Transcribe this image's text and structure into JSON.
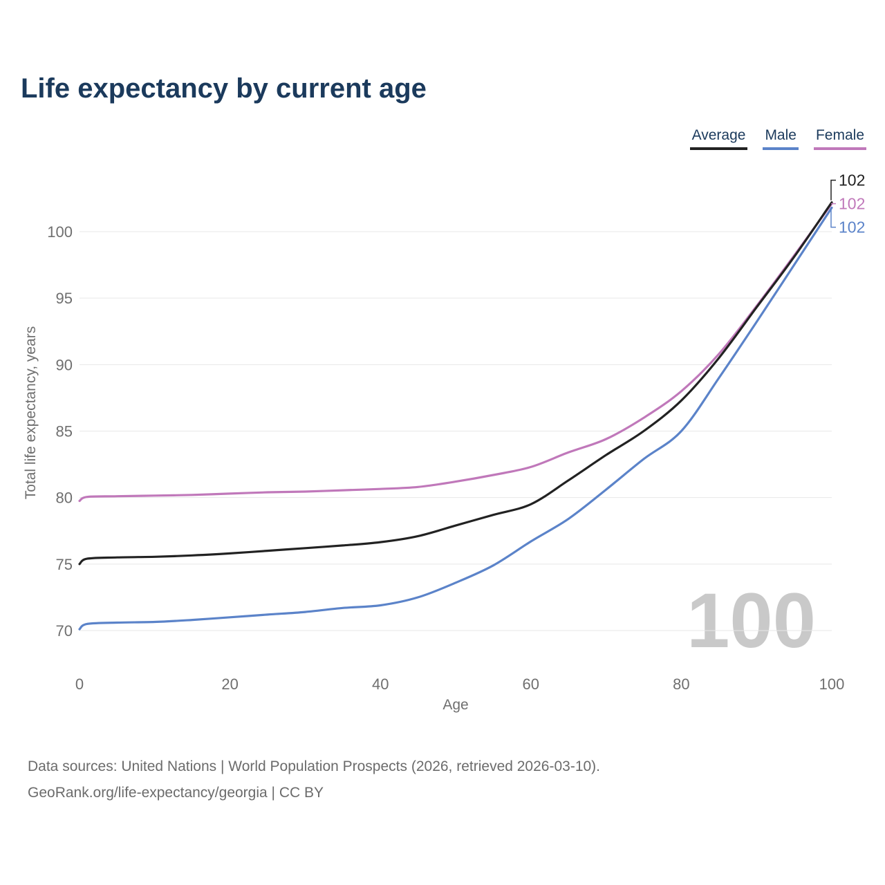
{
  "title": "Life expectancy by current age",
  "legend": [
    {
      "label": "Average",
      "color": "#222222"
    },
    {
      "label": "Male",
      "color": "#5b83c9"
    },
    {
      "label": "Female",
      "color": "#c078ba"
    }
  ],
  "watermark": "100",
  "footer": {
    "line1": "Data sources: United Nations | World Population Prospects (2026, retrieved 2026-03-10).",
    "line2": "GeoRank.org/life-expectancy/georgia | CC BY"
  },
  "chart_data": {
    "type": "line",
    "title": "Life expectancy by current age",
    "xlabel": "Age",
    "ylabel": "Total life expectancy, years",
    "xlim": [
      0,
      100
    ],
    "ylim": [
      70,
      100
    ],
    "xticks": [
      0,
      20,
      40,
      60,
      80,
      100
    ],
    "yticks": [
      70,
      75,
      80,
      85,
      90,
      95,
      100
    ],
    "grid": "horizontal",
    "legend_position": "top-right",
    "x": [
      0,
      1,
      5,
      10,
      15,
      20,
      25,
      30,
      35,
      40,
      45,
      50,
      55,
      60,
      65,
      70,
      75,
      80,
      85,
      90,
      95,
      100
    ],
    "series": [
      {
        "name": "Male",
        "color": "#5b83c9",
        "end_label": "102",
        "values": [
          70.1,
          70.5,
          70.6,
          70.65,
          70.8,
          71.0,
          71.2,
          71.4,
          71.7,
          71.9,
          72.5,
          73.6,
          74.9,
          76.7,
          78.4,
          80.6,
          82.9,
          85.0,
          89.0,
          93.2,
          97.5,
          101.8
        ]
      },
      {
        "name": "Female",
        "color": "#c078ba",
        "end_label": "102",
        "values": [
          79.75,
          80.05,
          80.1,
          80.15,
          80.2,
          80.3,
          80.4,
          80.45,
          80.55,
          80.65,
          80.8,
          81.2,
          81.7,
          82.3,
          83.4,
          84.4,
          86.0,
          88.0,
          90.8,
          94.4,
          98.2,
          102.1
        ]
      },
      {
        "name": "Average",
        "color": "#222222",
        "end_label": "102",
        "values": [
          75.0,
          75.4,
          75.5,
          75.55,
          75.65,
          75.8,
          76.0,
          76.2,
          76.4,
          76.65,
          77.1,
          77.9,
          78.7,
          79.5,
          81.3,
          83.2,
          85.0,
          87.3,
          90.5,
          94.3,
          98.1,
          102.2
        ]
      }
    ]
  }
}
